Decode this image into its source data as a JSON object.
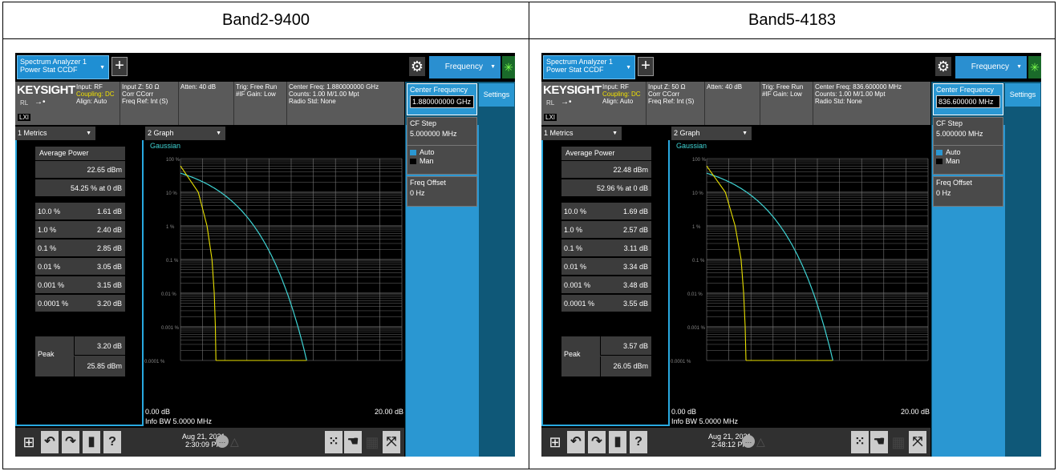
{
  "headers": [
    "Band2-9400",
    "Band5-4183"
  ],
  "common": {
    "tab_line1": "Spectrum Analyzer 1",
    "tab_line2": "Power Stat CCDF",
    "plus": "+",
    "freq_menu": "Frequency",
    "brand": "KEYSIGHT",
    "rl": "RL",
    "lxi": "LXI",
    "input": "Input: RF",
    "coupling": "Coupling: DC",
    "align": "Align: Auto",
    "inputz": "Input Z: 50 Ω",
    "corr": "Corr CCorr",
    "freqref": "Freq Ref: Int (S)",
    "atten": "Atten: 40 dB",
    "trig": "Trig: Free Run",
    "ifgain": "#IF Gain: Low",
    "counts": "Counts: 1.00 M/1.00 Mpt",
    "radiostd": "Radio Std: None",
    "settings": "Settings",
    "center_freq_label": "Center Frequency",
    "cf_step_label": "CF Step",
    "cf_step_value": "5.000000 MHz",
    "auto": "Auto",
    "man": "Man",
    "freq_offset_label": "Freq Offset",
    "freq_offset_value": "0 Hz",
    "metrics_title": "1 Metrics",
    "graph_title": "2 Graph",
    "gaussian": "Gaussian",
    "avg_power_label": "Average Power",
    "peak_label": "Peak",
    "x_left": "0.00 dB",
    "x_right": "20.00 dB",
    "info_bw": "Info BW 5.0000 MHz",
    "y_ticks": [
      "100 %",
      "10 %",
      "1 %",
      "0.1 %",
      "0.01 %",
      "0.001 %",
      "0.0001 %"
    ],
    "row_labels": [
      "10.0 %",
      "1.0 %",
      "0.1 %",
      "0.01 %",
      "0.001 %",
      "0.0001 %"
    ],
    "colors": {
      "accent": "#2a97d2",
      "gaussian": "#3fd4d4",
      "measured": "#e8e000"
    }
  },
  "panels": [
    {
      "center_freq_header": "Center Freq: 1.880000000 GHz",
      "center_freq_value": "1.880000000 GHz",
      "avg_dbm": "22.65 dBm",
      "pct_at_0db": "54.25 % at 0 dB",
      "rows": [
        "1.61 dB",
        "2.40 dB",
        "2.85 dB",
        "3.05 dB",
        "3.15 dB",
        "3.20 dB"
      ],
      "peak_db": "3.20 dB",
      "peak_dbm": "25.85 dBm",
      "date": "Aug 21, 2021",
      "time": "2:30:09 PM",
      "curve_db": [
        0,
        1.61,
        2.4,
        2.85,
        3.05,
        3.15,
        3.2
      ]
    },
    {
      "center_freq_header": "Center Freq: 836.600000 MHz",
      "center_freq_value": "836.600000 MHz",
      "avg_dbm": "22.48 dBm",
      "pct_at_0db": "52.96 % at 0 dB",
      "rows": [
        "1.69 dB",
        "2.57 dB",
        "3.11 dB",
        "3.34 dB",
        "3.48 dB",
        "3.55 dB"
      ],
      "peak_db": "3.57 dB",
      "peak_dbm": "26.05 dBm",
      "date": "Aug 21, 2021",
      "time": "2:48:12 PM",
      "curve_db": [
        0,
        1.69,
        2.57,
        3.11,
        3.34,
        3.48,
        3.55
      ]
    }
  ]
}
